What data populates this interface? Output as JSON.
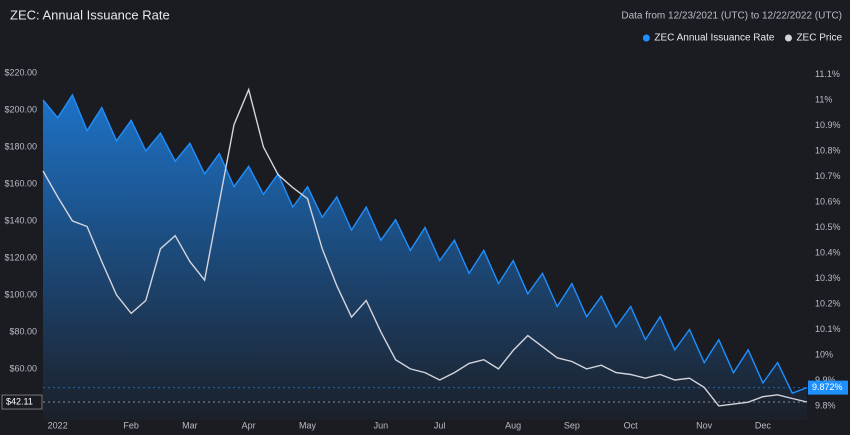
{
  "chart_data": {
    "type": "line",
    "title": "ZEC: Annual Issuance Rate",
    "subtitle": "Data from 12/23/2021 (UTC) to 12/22/2022 (UTC)",
    "categories": [
      null,
      "2022",
      null,
      null,
      null,
      null,
      "Feb",
      null,
      null,
      null,
      "Mar",
      null,
      null,
      null,
      "Apr",
      null,
      null,
      null,
      "May",
      null,
      null,
      null,
      null,
      "Jun",
      null,
      null,
      null,
      "Jul",
      null,
      null,
      null,
      null,
      "Aug",
      null,
      null,
      null,
      "Sep",
      null,
      null,
      null,
      "Oct",
      null,
      null,
      null,
      null,
      "Nov",
      null,
      null,
      null,
      "Dec",
      null,
      null,
      null
    ],
    "series": [
      {
        "name": "ZEC Annual Issuance Rate",
        "color": "#1e8fff",
        "axis": "y2",
        "values": [
          11.0,
          10.93,
          11.02,
          10.88,
          10.97,
          10.84,
          10.92,
          10.8,
          10.87,
          10.76,
          10.83,
          10.71,
          10.79,
          10.66,
          10.74,
          10.63,
          10.71,
          10.58,
          10.66,
          10.54,
          10.62,
          10.49,
          10.58,
          10.45,
          10.53,
          10.41,
          10.5,
          10.37,
          10.45,
          10.32,
          10.41,
          10.28,
          10.37,
          10.24,
          10.32,
          10.19,
          10.28,
          10.15,
          10.23,
          10.11,
          10.19,
          10.06,
          10.15,
          10.02,
          10.1,
          9.97,
          10.06,
          9.93,
          10.02,
          9.89,
          9.97,
          9.85,
          9.872
        ],
        "value_labels": [
          null,
          null,
          null,
          null,
          null,
          null,
          null,
          null,
          null,
          null,
          null,
          null,
          null,
          null,
          null,
          null,
          null,
          null,
          null,
          null,
          null,
          null,
          null,
          null,
          null,
          null,
          null,
          null,
          null,
          null,
          null,
          null,
          null,
          null,
          null,
          null,
          null,
          null,
          null,
          null,
          null,
          null,
          null,
          null,
          null,
          null,
          null,
          null,
          null,
          null,
          null,
          null,
          "9.872%"
        ]
      },
      {
        "name": "ZEC Price",
        "color": "#d4d4dc",
        "values": [
          167,
          153,
          140,
          137,
          118,
          100,
          90,
          97,
          125,
          132,
          118,
          108,
          150,
          192,
          211,
          180,
          165,
          158,
          152,
          125,
          105,
          88,
          97,
          80,
          65,
          60,
          58,
          54,
          58,
          63,
          65,
          60,
          70,
          78,
          72,
          66,
          64,
          60,
          62,
          58,
          57,
          55,
          57,
          54,
          55,
          50,
          40,
          41,
          42,
          45,
          46,
          44,
          42.11
        ],
        "value_labels": [
          null,
          null,
          null,
          null,
          null,
          null,
          null,
          null,
          null,
          null,
          null,
          null,
          null,
          null,
          null,
          null,
          null,
          null,
          null,
          null,
          null,
          null,
          null,
          null,
          null,
          null,
          null,
          null,
          null,
          null,
          null,
          null,
          null,
          null,
          null,
          null,
          null,
          null,
          null,
          null,
          null,
          null,
          null,
          null,
          null,
          null,
          null,
          null,
          null,
          null,
          null,
          null,
          "$42.11"
        ]
      }
    ],
    "ylim": [
      32.4,
      225.9
    ],
    "yticks": [
      {
        "value": 220,
        "label": "$220.00"
      },
      {
        "value": 200,
        "label": "$200.00"
      },
      {
        "value": 180,
        "label": "$180.00"
      },
      {
        "value": 160,
        "label": "$160.00"
      },
      {
        "value": 140,
        "label": "$140.00"
      },
      {
        "value": 120,
        "label": "$120.00"
      },
      {
        "value": 100,
        "label": "$100.00"
      },
      {
        "value": 80,
        "label": "$80.00"
      },
      {
        "value": 60,
        "label": "$60.00"
      }
    ],
    "y2lim": [
      9.745,
      11.149
    ],
    "y2ticks": [
      {
        "value": 11.1,
        "label": "11.1%"
      },
      {
        "value": 11,
        "label": "11%"
      },
      {
        "value": 10.9,
        "label": "10.9%"
      },
      {
        "value": 10.8,
        "label": "10.8%"
      },
      {
        "value": 10.7,
        "label": "10.7%"
      },
      {
        "value": 10.6,
        "label": "10.6%"
      },
      {
        "value": 10.5,
        "label": "10.5%"
      },
      {
        "value": 10.4,
        "label": "10.4%"
      },
      {
        "value": 10.3,
        "label": "10.3%"
      },
      {
        "value": 10.2,
        "label": "10.2%"
      },
      {
        "value": 10.1,
        "label": "10.1%"
      },
      {
        "value": 10,
        "label": "10%"
      },
      {
        "value": 9.9,
        "label": "9.9%"
      },
      {
        "value": 9.8,
        "label": "9.8%"
      }
    ],
    "grid": false,
    "legend": "top-right"
  }
}
